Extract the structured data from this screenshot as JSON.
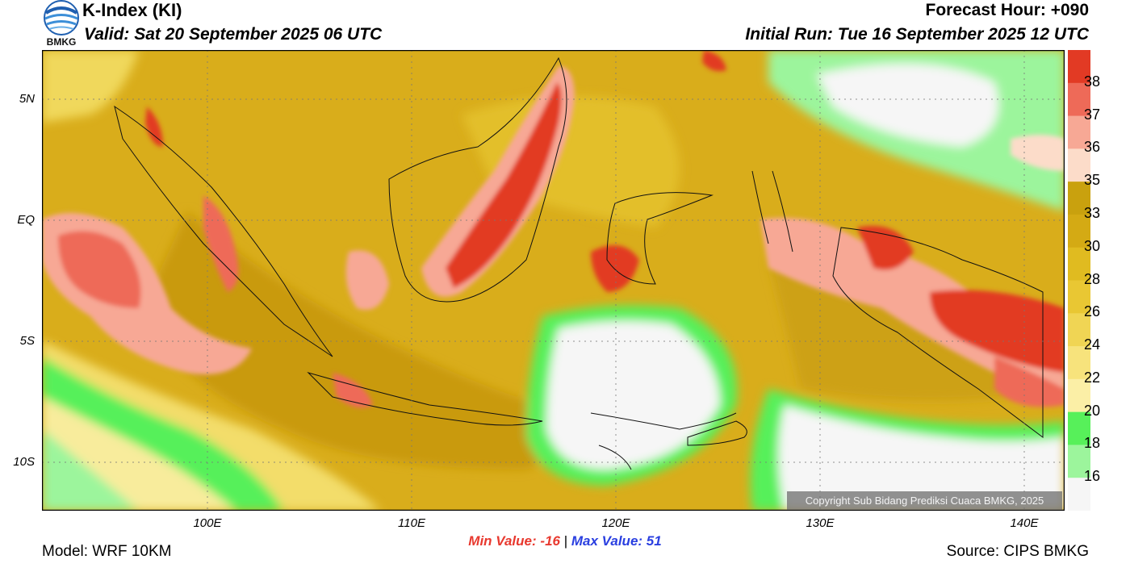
{
  "header": {
    "title": "K-Index (KI)",
    "valid_time": "Valid: Sat 20 September 2025 06 UTC",
    "forecast_hour": "Forecast Hour: +090",
    "initial_run": "Initial Run: Tue 16 September 2025 12 UTC",
    "logo_text": "BMKG"
  },
  "map": {
    "lon_range": [
      92,
      142
    ],
    "lat_range": [
      -12,
      7
    ],
    "lat_labels": [
      "5N",
      "EQ",
      "5S",
      "10S"
    ],
    "lat_values": [
      5,
      0,
      -5,
      -10
    ],
    "lon_labels": [
      "100E",
      "110E",
      "120E",
      "130E",
      "140E"
    ],
    "lon_values": [
      100,
      110,
      120,
      130,
      140
    ],
    "copyright": "Copyright Sub Bidang Prediksi Cuaca BMKG, 2025"
  },
  "legend": {
    "labels": [
      "38",
      "37",
      "36",
      "35",
      "33",
      "30",
      "28",
      "26",
      "24",
      "22",
      "20",
      "18",
      "16"
    ],
    "colors": [
      "#e23a24",
      "#ee6a58",
      "#f7a895",
      "#fcdcc9",
      "#c9a10e",
      "#d4aa14",
      "#e0bb20",
      "#e9c733",
      "#f0d554",
      "#f7e37c",
      "#fbefa6",
      "#57f05a",
      "#9cf59c",
      "#f6f6f6"
    ]
  },
  "stats": {
    "min_label": "Min Value:",
    "min_value": "-16",
    "separator": "|",
    "max_label": "Max Value:",
    "max_value": "51"
  },
  "footer": {
    "model": "Model: WRF 10KM",
    "source": "Source: CIPS BMKG"
  }
}
